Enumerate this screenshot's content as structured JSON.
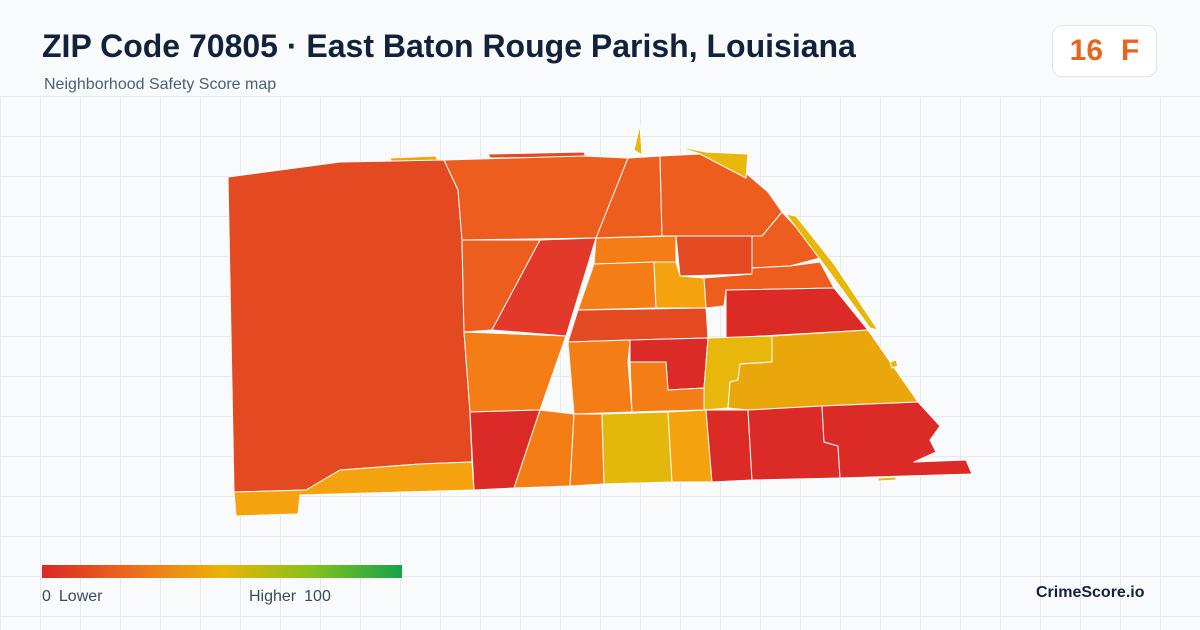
{
  "header": {
    "title": "ZIP Code 70805 · East Baton Rouge Parish, Louisiana",
    "subtitle": "Neighborhood Safety Score map"
  },
  "score": {
    "value": "16",
    "grade": "F",
    "color": "#e8651c"
  },
  "legend": {
    "min_value": "0",
    "min_label": "Lower",
    "max_label": "Higher",
    "max_value": "100",
    "colors": [
      "#dc2626",
      "#f07a1a",
      "#eab308",
      "#84c21a",
      "#16a34a"
    ]
  },
  "brand": "CrimeScore.io",
  "map": {
    "region_colors": {
      "lowest": "#dc2a26",
      "very_low": "#e34a22",
      "low": "#ed5e1e",
      "low_mid": "#f47d16",
      "mid": "#f5a20f",
      "higher": "#e7b70c"
    }
  }
}
